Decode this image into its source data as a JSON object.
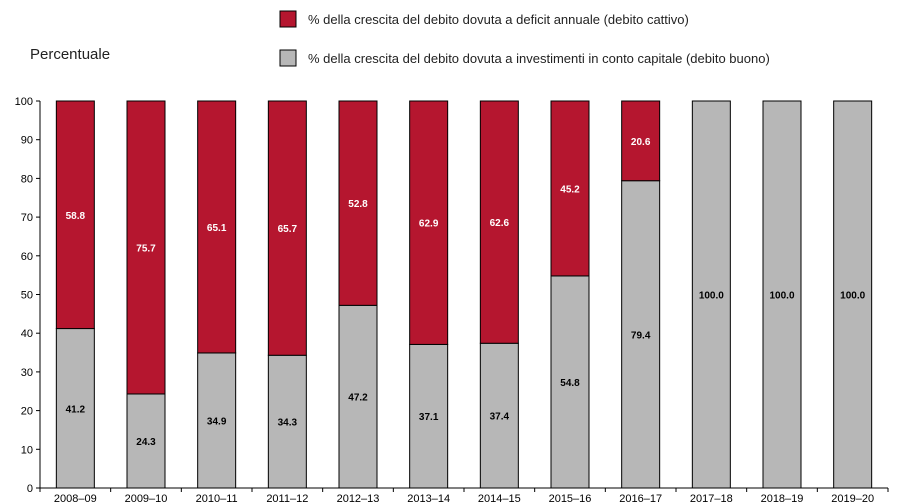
{
  "chart_data": {
    "type": "bar",
    "stacked": true,
    "title": "",
    "xlabel": "",
    "ylabel": "Percentuale",
    "ylim": [
      0,
      100
    ],
    "yticks": [
      0,
      10,
      20,
      30,
      40,
      50,
      60,
      70,
      80,
      90,
      100
    ],
    "grid": false,
    "legend_position": "top",
    "categories": [
      "2008–09",
      "2009–10",
      "2010–11",
      "2011–12",
      "2012–13",
      "2013–14",
      "2014–15",
      "2015–16",
      "2016–17",
      "2017–18",
      "2018–19",
      "2019–20"
    ],
    "series": [
      {
        "name": "% della crescita del debito dovuta a investimenti in conto capitale (debito buono)",
        "color": "#b7b7b7",
        "label_color": "#000000",
        "values": [
          41.2,
          24.3,
          34.9,
          34.3,
          47.2,
          37.1,
          37.4,
          54.8,
          79.4,
          100.0,
          100.0,
          100.0
        ],
        "labels": [
          "41.2",
          "24.3",
          "34.9",
          "34.3",
          "47.2",
          "37.1",
          "37.4",
          "54.8",
          "79.4",
          "100.0",
          "100.0",
          "100.0"
        ]
      },
      {
        "name": "% della crescita del debito dovuta a deficit annuale (debito cattivo)",
        "color": "#b5162f",
        "label_color": "#ffffff",
        "values": [
          58.8,
          75.7,
          65.1,
          65.7,
          52.8,
          62.9,
          62.6,
          45.2,
          20.6,
          0,
          0,
          0
        ],
        "labels": [
          "58.8",
          "75.7",
          "65.1",
          "65.7",
          "52.8",
          "62.9",
          "62.6",
          "45.2",
          "20.6",
          "",
          "",
          ""
        ]
      }
    ],
    "legend_order": [
      1,
      0
    ]
  }
}
